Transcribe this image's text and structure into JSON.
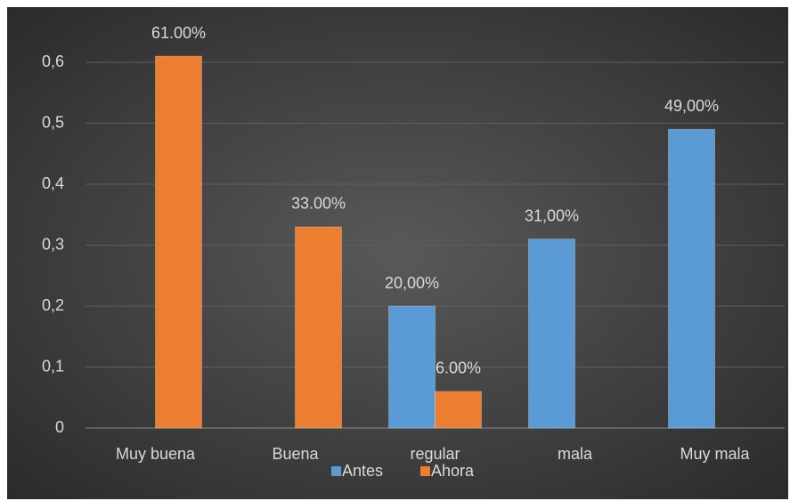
{
  "chart_data": {
    "type": "bar",
    "categories": [
      "Muy buena",
      "Buena",
      "regular",
      "mala",
      "Muy mala"
    ],
    "series": [
      {
        "name": "Antes",
        "color": "#5b9bd5",
        "values": [
          null,
          null,
          0.2,
          0.31,
          0.49
        ],
        "value_labels": [
          null,
          null,
          "20,00%",
          "31,00%",
          "49,00%"
        ]
      },
      {
        "name": "Ahora",
        "color": "#ed7d31",
        "values": [
          0.61,
          0.33,
          0.06,
          null,
          null
        ],
        "value_labels": [
          "61.00%",
          "33.00%",
          "6.00%",
          null,
          null
        ]
      }
    ],
    "ylim": [
      0,
      0.6
    ],
    "yticks": [
      0,
      {
        "value": 0.1,
        "label": "0,1"
      },
      {
        "value": 0.2,
        "label": "0,2"
      },
      {
        "value": 0.3,
        "label": "0,3"
      },
      {
        "value": 0.4,
        "label": "0,4"
      },
      {
        "value": 0.5,
        "label": "0,5"
      },
      {
        "value": 0.6,
        "label": "0,6"
      }
    ],
    "grid": true,
    "legend": "bottom"
  }
}
